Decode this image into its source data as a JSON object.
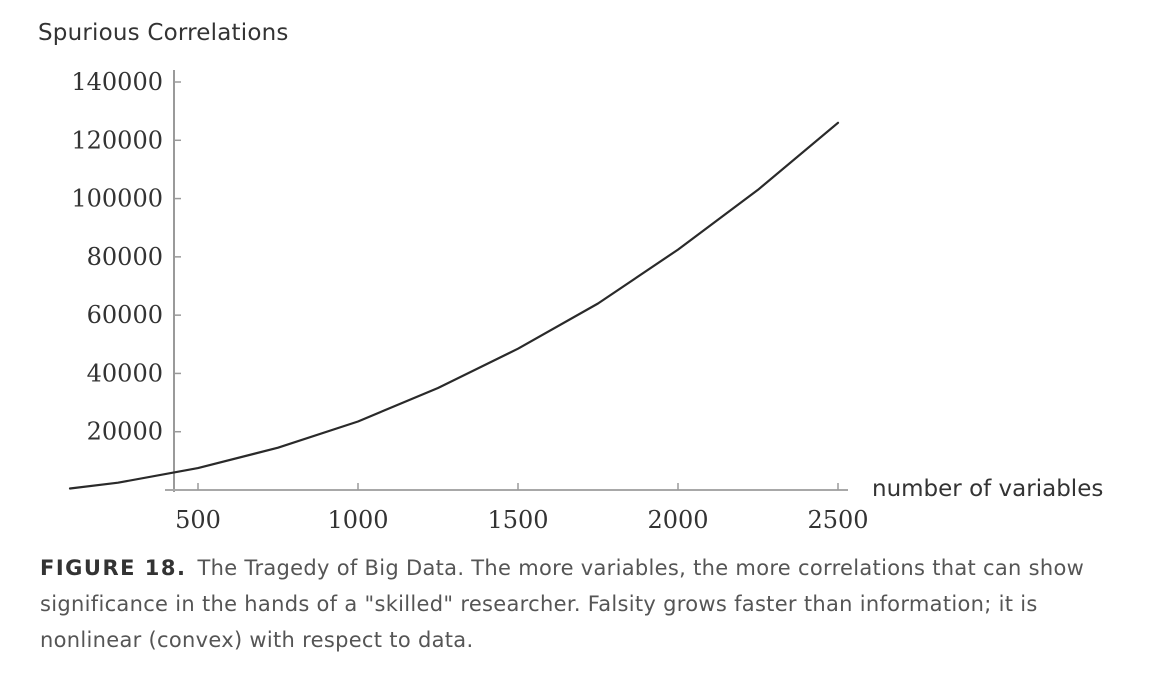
{
  "chart_data": {
    "type": "line",
    "title": "",
    "ylabel": "Spurious Correlations",
    "xlabel": "number of variables",
    "xlim": [
      0,
      2500
    ],
    "ylim": [
      0,
      145000
    ],
    "xticks": [
      500,
      1000,
      1500,
      2000,
      2500
    ],
    "xtick_labels": [
      "500",
      "1000",
      "1500",
      "2000",
      "2500"
    ],
    "yticks": [
      20000,
      40000,
      60000,
      80000,
      100000,
      120000,
      140000
    ],
    "ytick_labels": [
      "20000",
      "40000",
      "60000",
      "80000",
      "100000",
      "120000",
      "140000"
    ],
    "grid": false,
    "series": [
      {
        "x": [
          100,
          250,
          500,
          750,
          1000,
          1250,
          1500,
          1750,
          2000,
          2250,
          2500
        ],
        "y": [
          500,
          2500,
          7500,
          14500,
          23500,
          35000,
          48500,
          64000,
          82500,
          103000,
          126000
        ],
        "color": "#2a2a2a"
      }
    ]
  },
  "caption": {
    "figure_label": "FIGURE 18.",
    "text": "The Tragedy of Big Data. The more variables, the more correlations that can show significance in the hands of a \"skilled\" researcher. Falsity grows faster than information; it is nonlinear (convex) with respect to data."
  }
}
